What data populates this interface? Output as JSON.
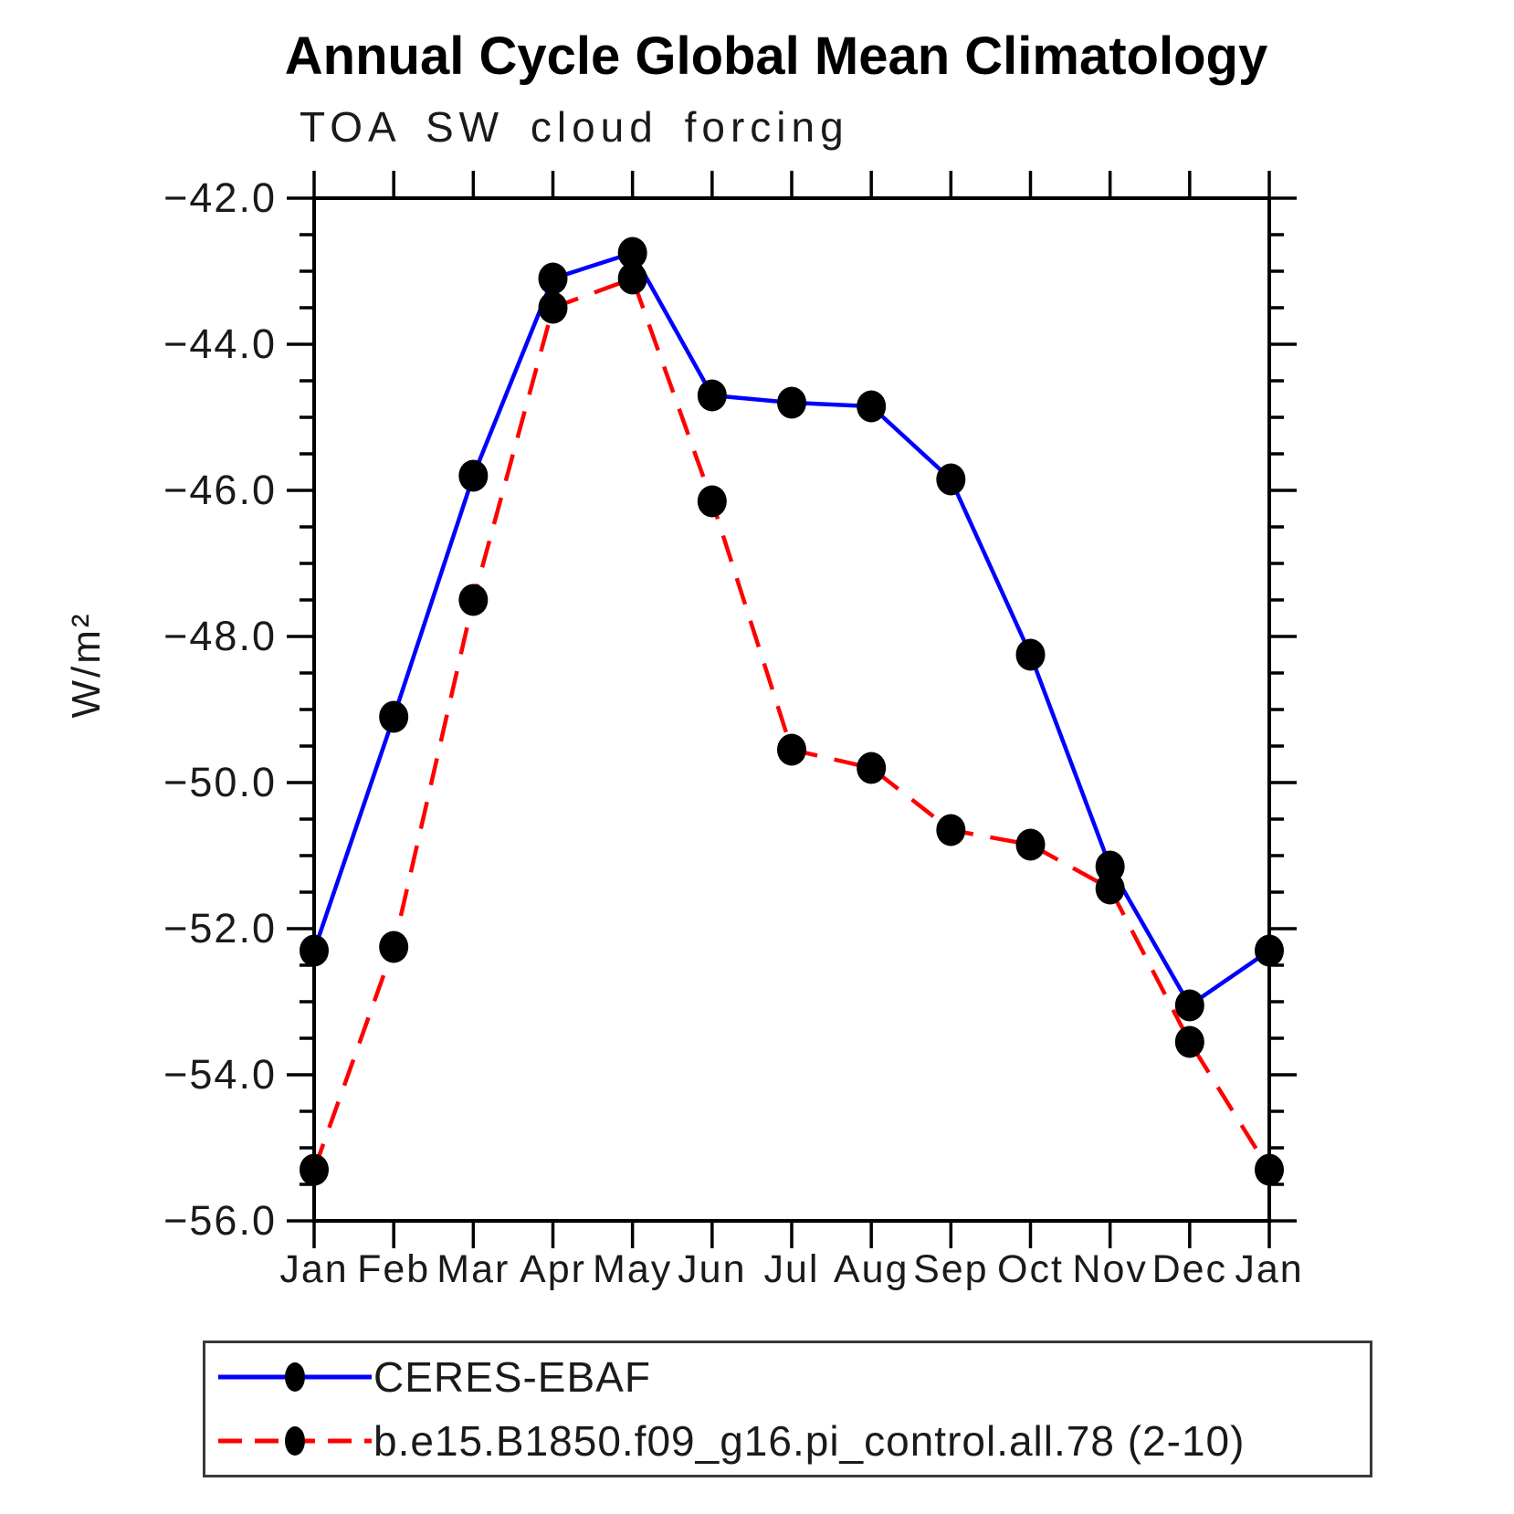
{
  "header": {
    "title": "Annual Cycle Global Mean Climatology",
    "subtitle": "TOA SW cloud forcing"
  },
  "chart_data": {
    "type": "line",
    "title": "Annual Cycle Global Mean Climatology",
    "subtitle": "TOA SW cloud forcing",
    "xlabel": "",
    "ylabel": "W/m²",
    "x_categories": [
      "Jan",
      "Feb",
      "Mar",
      "Apr",
      "May",
      "Jun",
      "Jul",
      "Aug",
      "Sep",
      "Oct",
      "Nov",
      "Dec",
      "Jan"
    ],
    "y_axis": {
      "min": -56.0,
      "max": -42.0,
      "major_step": 2.0,
      "minor_step": 0.5,
      "tick_labels": [
        "−42.0",
        "−44.0",
        "−46.0",
        "−48.0",
        "−50.0",
        "−52.0",
        "−54.0",
        "−56.0"
      ]
    },
    "grid": false,
    "legend_position": "bottom",
    "axis_color": "#000000",
    "marker_color": "#000000",
    "series": [
      {
        "name": "CERES-EBAF",
        "color": "#0000ff",
        "line_style": "solid",
        "marker": "filled-circle",
        "values": [
          -52.3,
          -49.1,
          -45.8,
          -43.1,
          -42.75,
          -44.7,
          -44.8,
          -44.85,
          -45.85,
          -48.25,
          -51.15,
          -53.05,
          -52.3
        ]
      },
      {
        "name": "b.e15.B1850.f09_g16.pi_control.all.78 (2-10)",
        "color": "#ff0000",
        "line_style": "dashed",
        "marker": "filled-circle",
        "values": [
          -55.3,
          -52.25,
          -47.5,
          -43.5,
          -43.1,
          -46.15,
          -49.55,
          -49.8,
          -50.65,
          -50.85,
          -51.45,
          -53.55,
          -55.3
        ]
      }
    ]
  }
}
